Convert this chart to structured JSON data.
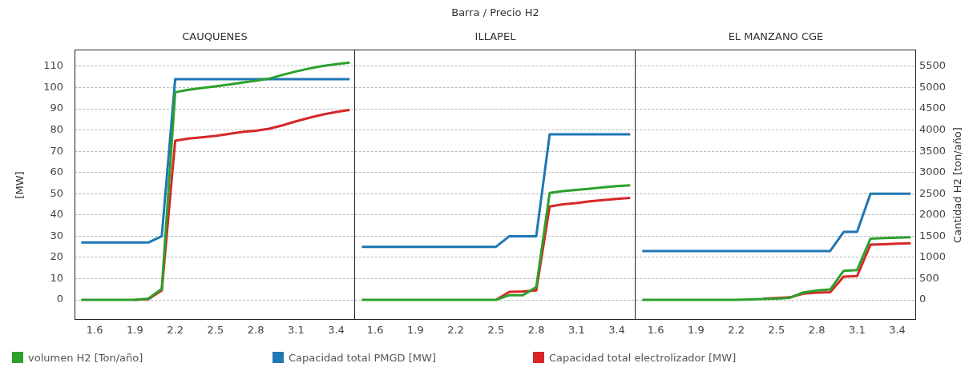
{
  "chart_data": [
    {
      "type": "line",
      "title": "CAUQUENES",
      "annotations": [
        "Barra / Precio H2"
      ],
      "ylabel": "[MW]",
      "legend": "bottom",
      "grid": "y",
      "x": [
        1.5,
        1.6,
        1.7,
        1.8,
        1.9,
        2.0,
        2.1,
        2.2,
        2.3,
        2.4,
        2.5,
        2.6,
        2.7,
        2.8,
        2.9,
        3.0,
        3.1,
        3.2,
        3.3,
        3.4,
        3.5
      ],
      "xlim": [
        1.45,
        3.54
      ],
      "xticks": [
        1.6,
        1.9,
        2.2,
        2.5,
        2.8,
        3.1,
        3.4
      ],
      "ylim": [
        -9.4,
        117.9
      ],
      "yticks": [
        0,
        10,
        20,
        30,
        40,
        50,
        60,
        70,
        80,
        90,
        100,
        110
      ],
      "y2lim": [
        -470,
        5895
      ],
      "series": [
        {
          "name": "volumen H2 [Ton/año]",
          "color": "#2ca02c",
          "axis": "y2",
          "values": [
            0,
            0,
            0,
            0,
            0,
            30,
            260,
            4890,
            4950,
            4990,
            5030,
            5070,
            5120,
            5160,
            5210,
            5300,
            5380,
            5450,
            5510,
            5550,
            5590
          ]
        },
        {
          "name": "Capacidad total PMGD [MW]",
          "color": "#1f77b4",
          "axis": "y",
          "values": [
            27,
            27,
            27,
            27,
            27,
            27,
            30,
            104,
            104,
            104,
            104,
            104,
            104,
            104,
            104,
            104,
            104,
            104,
            104,
            104,
            104
          ]
        },
        {
          "name": "Capacidad total electrolizador [MW]",
          "color": "#d62728",
          "axis": "y",
          "values": [
            null,
            null,
            null,
            null,
            0,
            0.3,
            4.4,
            75,
            76,
            76.6,
            77.2,
            78.2,
            79.1,
            79.7,
            80.6,
            82.2,
            84.1,
            85.8,
            87.3,
            88.5,
            89.5
          ]
        }
      ]
    },
    {
      "type": "line",
      "title": "ILLAPEL",
      "tick_labels": "x",
      "grid": "y",
      "x": [
        1.5,
        1.6,
        1.7,
        1.8,
        1.9,
        2.0,
        2.1,
        2.2,
        2.3,
        2.4,
        2.5,
        2.6,
        2.7,
        2.8,
        2.9,
        3.0,
        3.1,
        3.2,
        3.3,
        3.4,
        3.5
      ],
      "xlim": [
        1.45,
        3.54
      ],
      "xticks": [
        1.6,
        1.9,
        2.2,
        2.5,
        2.8,
        3.1,
        3.4
      ],
      "ylim": [
        -9.4,
        117.9
      ],
      "yticks": [
        0,
        10,
        20,
        30,
        40,
        50,
        60,
        70,
        80,
        90,
        100,
        110
      ],
      "y2lim": [
        -470,
        5895
      ],
      "series": [
        {
          "color": "#2ca02c",
          "axis": "y2",
          "values": [
            0,
            0,
            0,
            0,
            0,
            0,
            0,
            0,
            0,
            0,
            0,
            110,
            110,
            300,
            2520,
            2560,
            2590,
            2620,
            2650,
            2680,
            2700
          ]
        },
        {
          "color": "#1f77b4",
          "axis": "y",
          "values": [
            25,
            25,
            25,
            25,
            25,
            25,
            25,
            25,
            25,
            25,
            25,
            30,
            30,
            30,
            78,
            78,
            78,
            78,
            78,
            78,
            78
          ]
        },
        {
          "color": "#d62728",
          "axis": "y",
          "values": [
            null,
            null,
            null,
            null,
            null,
            null,
            null,
            null,
            null,
            null,
            0,
            3.8,
            4,
            4.4,
            44,
            45,
            45.6,
            46.4,
            47,
            47.6,
            48
          ]
        }
      ]
    },
    {
      "type": "line",
      "title": "EL MANZANO CGE",
      "y2label": "Cantidad H2 [ton/año]",
      "grid": "y",
      "x": [
        1.5,
        1.6,
        1.7,
        1.8,
        1.9,
        2.0,
        2.1,
        2.2,
        2.3,
        2.4,
        2.5,
        2.6,
        2.7,
        2.8,
        2.9,
        3.0,
        3.1,
        3.2,
        3.3,
        3.4,
        3.5
      ],
      "xlim": [
        1.45,
        3.54
      ],
      "xticks": [
        1.6,
        1.9,
        2.2,
        2.5,
        2.8,
        3.1,
        3.4
      ],
      "ylim": [
        -9.4,
        117.9
      ],
      "y2lim": [
        -470,
        5895
      ],
      "y2ticks": [
        0,
        500,
        1000,
        1500,
        2000,
        2500,
        3000,
        3500,
        4000,
        4500,
        5000,
        5500
      ],
      "series": [
        {
          "color": "#2ca02c",
          "axis": "y2",
          "values": [
            0,
            0,
            0,
            0,
            0,
            0,
            0,
            0,
            10,
            20,
            30,
            50,
            175,
            220,
            245,
            685,
            700,
            1440,
            1455,
            1465,
            1475
          ]
        },
        {
          "color": "#1f77b4",
          "axis": "y",
          "values": [
            23,
            23,
            23,
            23,
            23,
            23,
            23,
            23,
            23,
            23,
            23,
            23,
            23,
            23,
            23,
            32,
            32,
            50,
            50,
            50,
            50
          ]
        },
        {
          "color": "#d62728",
          "axis": "y",
          "values": [
            null,
            null,
            null,
            null,
            null,
            null,
            null,
            null,
            null,
            0.6,
            0.9,
            1.2,
            2.9,
            3.4,
            3.6,
            10.9,
            11.2,
            26,
            26.2,
            26.5,
            26.7
          ]
        }
      ]
    }
  ]
}
